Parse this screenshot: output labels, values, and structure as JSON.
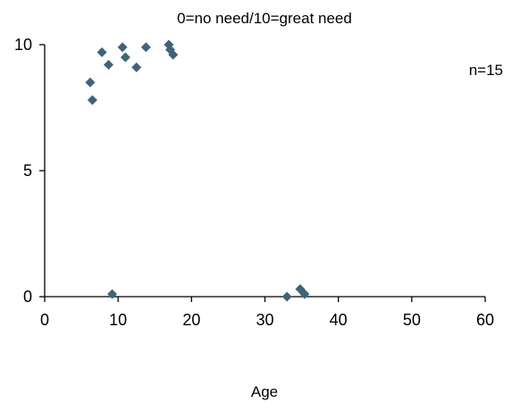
{
  "chart_data": {
    "type": "scatter",
    "title": "0=no need/10=great need",
    "xlabel": "Age",
    "ylabel": "",
    "annotation": "n=15",
    "xlim": [
      0,
      60
    ],
    "ylim": [
      0,
      10
    ],
    "xticks": [
      0,
      10,
      20,
      30,
      40,
      50,
      60
    ],
    "yticks": [
      0,
      5,
      10
    ],
    "marker": "diamond",
    "marker_color": "#3f6478",
    "grid": false,
    "legend": "none",
    "series": [
      {
        "points": [
          {
            "x": 6.2,
            "y": 8.5
          },
          {
            "x": 6.5,
            "y": 7.8
          },
          {
            "x": 7.8,
            "y": 9.7
          },
          {
            "x": 8.7,
            "y": 9.2
          },
          {
            "x": 10.6,
            "y": 9.9
          },
          {
            "x": 11.0,
            "y": 9.5
          },
          {
            "x": 12.5,
            "y": 9.1
          },
          {
            "x": 13.8,
            "y": 9.9
          },
          {
            "x": 16.9,
            "y": 10.0
          },
          {
            "x": 17.1,
            "y": 9.8
          },
          {
            "x": 17.5,
            "y": 9.6
          },
          {
            "x": 9.2,
            "y": 0.1
          },
          {
            "x": 33.0,
            "y": 0.0
          },
          {
            "x": 34.8,
            "y": 0.3
          },
          {
            "x": 35.4,
            "y": 0.1
          }
        ]
      }
    ]
  }
}
